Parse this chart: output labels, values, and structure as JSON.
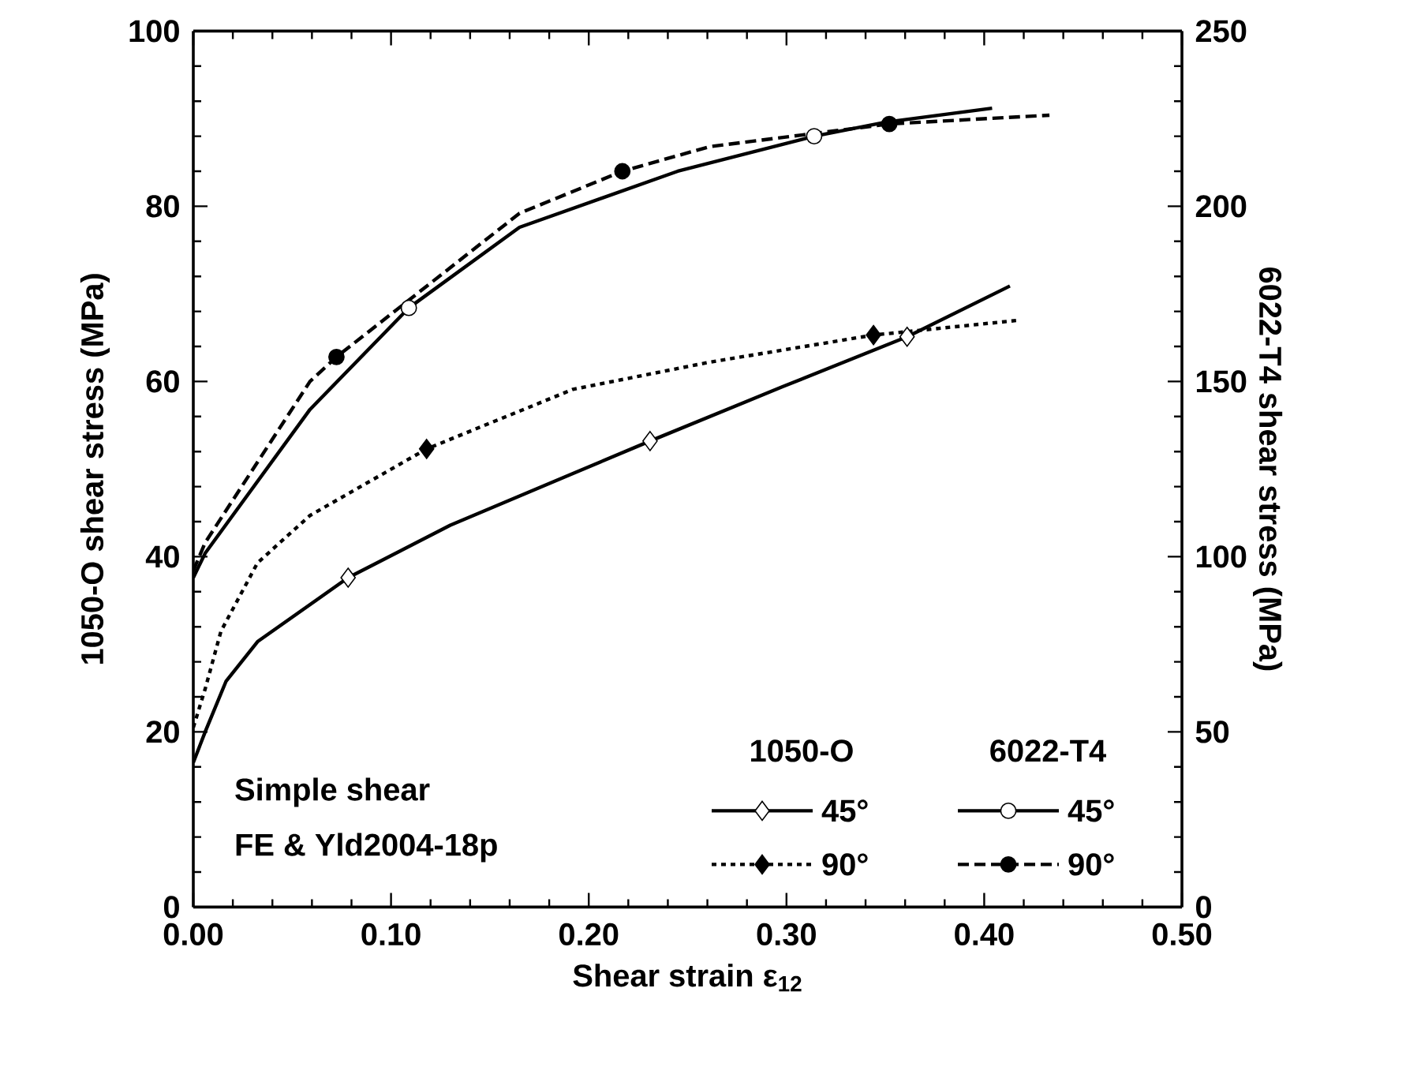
{
  "chart_data": {
    "type": "line",
    "xlabel": "Shear strain ε$_{12}$",
    "ylabel": "1050-O shear stress (MPa)",
    "y2label": "6022-T4 shear stress (MPa)",
    "annotations": [
      "Simple shear",
      "FE & Yld2004-18p",
      "1050-O",
      "6022-T4"
    ],
    "xlim": [
      0,
      0.5
    ],
    "xticks": [
      {
        "value": 0,
        "label": "0.00"
      },
      {
        "value": 0.1,
        "label": "0.10"
      },
      {
        "value": 0.2,
        "label": "0.20"
      },
      {
        "value": 0.3,
        "label": "0.30"
      },
      {
        "value": 0.4,
        "label": "0.40"
      },
      {
        "value": 0.5,
        "label": "0.50"
      }
    ],
    "ylim": [
      0,
      100
    ],
    "yticks": [
      0,
      20,
      40,
      60,
      80,
      100
    ],
    "y2lim": [
      0,
      250
    ],
    "y2ticks": [
      0,
      50,
      100,
      150,
      200,
      250
    ],
    "grid": false,
    "legend": "bottom right",
    "series": [
      {
        "name": "45°",
        "color": "#000000",
        "line_style": "solid",
        "x": [
          0,
          0.006,
          0.0166,
          0.0325,
          0.0783,
          0.13,
          0.192,
          0.231,
          0.298,
          0.361,
          0.413
        ],
        "values": [
          16.5,
          20,
          25.8,
          30.3,
          37.6,
          43.6,
          49.5,
          53.2,
          59.4,
          65.1,
          70.9
        ]
      },
      {
        "name": "90°",
        "color": "#000000",
        "line_style": "dotted",
        "x": [
          0,
          0.006,
          0.014,
          0.0325,
          0.059,
          0.118,
          0.192,
          0.261,
          0.344,
          0.418
        ],
        "values": [
          20.5,
          24.9,
          31.5,
          39.3,
          44.7,
          52.3,
          59.1,
          62.2,
          65.3,
          67.0
        ]
      },
      {
        "name": "45°",
        "axis": "y2",
        "color": "#000000",
        "line_style": "solid",
        "x": [
          0,
          0.006,
          0.059,
          0.109,
          0.165,
          0.245,
          0.314,
          0.35,
          0.404
        ],
        "values": [
          94,
          101,
          142,
          171,
          194,
          210,
          220,
          224,
          228
        ]
      },
      {
        "name": "90°",
        "axis": "y2",
        "color": "#000000",
        "line_style": "dashed",
        "x": [
          0,
          0.006,
          0.059,
          0.0724,
          0.165,
          0.217,
          0.261,
          0.352,
          0.433
        ],
        "values": [
          96,
          104,
          150,
          157,
          198,
          210,
          217,
          223.5,
          226
        ]
      },
      {
        "type": "scatter",
        "marker": "diamond",
        "color": "#ffffff",
        "x": [
          0.0783,
          0.231,
          0.361
        ],
        "values": [
          37.6,
          53.2,
          65.1
        ]
      },
      {
        "type": "scatter",
        "marker": "diamond",
        "color": "#000000",
        "x": [
          0.118,
          0.344
        ],
        "values": [
          52.3,
          65.3
        ]
      },
      {
        "type": "scatter",
        "axis": "y2",
        "marker": "circle",
        "color": "#ffffff",
        "x": [
          0.109,
          0.314
        ],
        "values": [
          171,
          220
        ]
      },
      {
        "type": "scatter",
        "axis": "y2",
        "marker": "circle",
        "color": "#000000",
        "x": [
          0.0724,
          0.217,
          0.352
        ],
        "values": [
          157,
          210,
          223.5
        ]
      }
    ]
  }
}
